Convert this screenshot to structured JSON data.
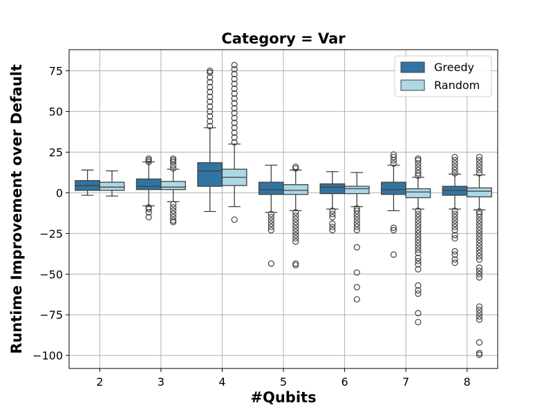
{
  "chart_data": {
    "type": "boxplot",
    "title": "Category = Var",
    "xlabel": "#Qubits",
    "ylabel": "Runtime Improvement over Default",
    "categories": [
      "2",
      "3",
      "4",
      "5",
      "6",
      "7",
      "8"
    ],
    "ylim": [
      -108,
      88
    ],
    "yticks": [
      75,
      50,
      25,
      0,
      -25,
      -50,
      -75,
      -100
    ],
    "ytick_labels": [
      "75",
      "50",
      "25",
      "0",
      "−25",
      "−50",
      "−75",
      "−100"
    ],
    "grid": true,
    "legend_position": "top-right",
    "series": [
      {
        "name": "Greedy",
        "color": "#3274a1",
        "boxes": [
          {
            "whislo": -1.5,
            "q1": 1.5,
            "med": 4.5,
            "q3": 7.5,
            "whishi": 14,
            "fliers": []
          },
          {
            "whislo": -8,
            "q1": 2,
            "med": 4,
            "q3": 8.5,
            "whishi": 19,
            "fliers": [
              -15,
              -12,
              -10,
              -9,
              19,
              20,
              21
            ]
          },
          {
            "whislo": -11.5,
            "q1": 4,
            "med": 13.5,
            "q3": 18.5,
            "whishi": 40,
            "fliers": [
              41,
              44,
              47,
              50,
              53,
              56,
              59,
              62,
              65,
              68,
              71,
              74,
              75
            ]
          },
          {
            "whislo": -12,
            "q1": -1,
            "med": 2,
            "q3": 6.5,
            "whishi": 17,
            "fliers": [
              -13,
              -15,
              -17,
              -19,
              -21,
              -23,
              -43.5
            ]
          },
          {
            "whislo": -10,
            "q1": -0.5,
            "med": 3.5,
            "q3": 5.5,
            "whishi": 13,
            "fliers": [
              -11,
              -13,
              -15,
              -19,
              -21,
              -23
            ]
          },
          {
            "whislo": -11,
            "q1": -1,
            "med": 2,
            "q3": 6.5,
            "whishi": 17,
            "fliers": [
              18,
              20,
              22,
              23.5,
              -21.5,
              -23,
              -38
            ]
          },
          {
            "whislo": -10,
            "q1": -1.5,
            "med": 1.5,
            "q3": 4,
            "whishi": 11.5,
            "fliers": [
              12,
              14,
              16,
              18,
              20,
              22,
              -11,
              -13,
              -15,
              -17,
              -19,
              -21,
              -23,
              -26,
              -28,
              -36,
              -38,
              -41,
              -43
            ]
          }
        ]
      },
      {
        "name": "Random",
        "color": "#add8e6",
        "boxes": [
          {
            "whislo": -2,
            "q1": 1.5,
            "med": 3.5,
            "q3": 6.5,
            "whishi": 13.5,
            "fliers": []
          },
          {
            "whislo": -5.5,
            "q1": 2,
            "med": 3.5,
            "q3": 7,
            "whishi": 14.5,
            "fliers": [
              15,
              17,
              19,
              20,
              21,
              -7,
              -9,
              -11,
              -13,
              -15,
              -17,
              -18
            ]
          },
          {
            "whislo": -8.5,
            "q1": 4.5,
            "med": 9.5,
            "q3": 14.5,
            "whishi": 30,
            "fliers": [
              31,
              34,
              37,
              40,
              43,
              46,
              49,
              52,
              55,
              58,
              61,
              64,
              67,
              70,
              73,
              76,
              78.5,
              -16.5
            ]
          },
          {
            "whislo": -11,
            "q1": -1,
            "med": 1.5,
            "q3": 5,
            "whishi": 14,
            "fliers": [
              15,
              16,
              -12,
              -14,
              -16,
              -18,
              -20,
              -22,
              -24,
              -26,
              -28,
              -30,
              -43.5,
              -44.5
            ]
          },
          {
            "whislo": -8.5,
            "q1": -0.5,
            "med": 2.5,
            "q3": 4,
            "whishi": 12.5,
            "fliers": [
              -9.5,
              -11,
              -13,
              -15,
              -17,
              -19,
              -21,
              -23,
              -33.5,
              -49,
              -58,
              -65.5
            ]
          },
          {
            "whislo": -10,
            "q1": -3,
            "med": 0.5,
            "q3": 2.5,
            "whishi": 9.5,
            "fliers": [
              10.5,
              12,
              14,
              16,
              18,
              20,
              21,
              -11,
              -13,
              -15,
              -17,
              -19,
              -21,
              -23,
              -25,
              -27,
              -29,
              -31,
              -33,
              -35,
              -37,
              -40,
              -42,
              -44,
              -47,
              -57,
              -60,
              -62,
              -74,
              -79.5
            ]
          },
          {
            "whislo": -10.5,
            "q1": -2.5,
            "med": 1,
            "q3": 3,
            "whishi": 11,
            "fliers": [
              12,
              14,
              16,
              18,
              20,
              22,
              -11.5,
              -13,
              -15,
              -17,
              -19,
              -21,
              -23,
              -25,
              -27,
              -29,
              -31,
              -33,
              -35,
              -37,
              -39,
              -41,
              -46,
              -48,
              -50,
              -52,
              -70,
              -72,
              -74,
              -76,
              -78,
              -92,
              -98.5,
              -99.5
            ]
          }
        ]
      }
    ]
  }
}
